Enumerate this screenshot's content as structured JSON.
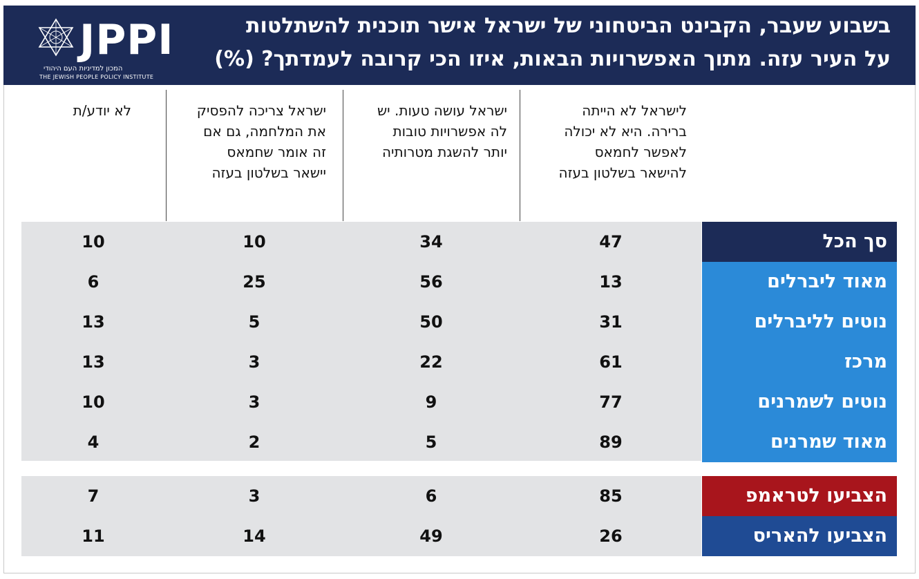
{
  "title_lines": [
    "בשבוע שעבר, הקבינט הביטחוני של ישראל אישר תוכנית להשתלטות",
    "על העיר עזה. מתוך האפשרויות הבאות, איזו הכי קרובה לעמדתך? (%)"
  ],
  "logo": {
    "word": "JPPI",
    "hebrew": "המכון למדיניות העם היהודי",
    "english": "THE JEWISH PEOPLE POLICY INSTITUTE"
  },
  "chart_data": {
    "type": "table",
    "columns": [
      [
        "לישראל לא הייתה",
        "ברירה. היא לא יכולה",
        "לאפשר לחמאס",
        "להישאר בשלטון בעזה"
      ],
      [
        "ישראל עושה טעות. יש",
        "לה אפשרויות טובות",
        "יותר להשגת מטרותיה"
      ],
      [
        "ישראל צריכה להפסיק",
        "את המלחמה, גם אם",
        "זה אומר שחמאס",
        "יישאר בשלטון בעזה"
      ],
      [
        "לא יודע/ת"
      ]
    ],
    "groups": [
      {
        "rows": [
          {
            "label": "סך הכל",
            "color": "#1c2b57",
            "values": [
              47,
              34,
              10,
              10
            ]
          },
          {
            "label": "מאוד ליברלים",
            "color": "#2b8ad8",
            "values": [
              13,
              56,
              25,
              6
            ]
          },
          {
            "label": "נוטים לליברלים",
            "color": "#2b8ad8",
            "values": [
              31,
              50,
              5,
              13
            ]
          },
          {
            "label": "מרכז",
            "color": "#2b8ad8",
            "values": [
              61,
              22,
              3,
              13
            ]
          },
          {
            "label": "נוטים לשמרנים",
            "color": "#2b8ad8",
            "values": [
              77,
              9,
              3,
              10
            ]
          },
          {
            "label": "מאוד שמרנים",
            "color": "#2b8ad8",
            "values": [
              89,
              5,
              2,
              4
            ]
          }
        ]
      },
      {
        "rows": [
          {
            "label": "הצביעו לטראמפ",
            "color": "#a8151c",
            "values": [
              85,
              6,
              3,
              7
            ]
          },
          {
            "label": "הצביעו להאריס",
            "color": "#1f4b94",
            "values": [
              26,
              49,
              14,
              11
            ]
          }
        ]
      }
    ]
  }
}
